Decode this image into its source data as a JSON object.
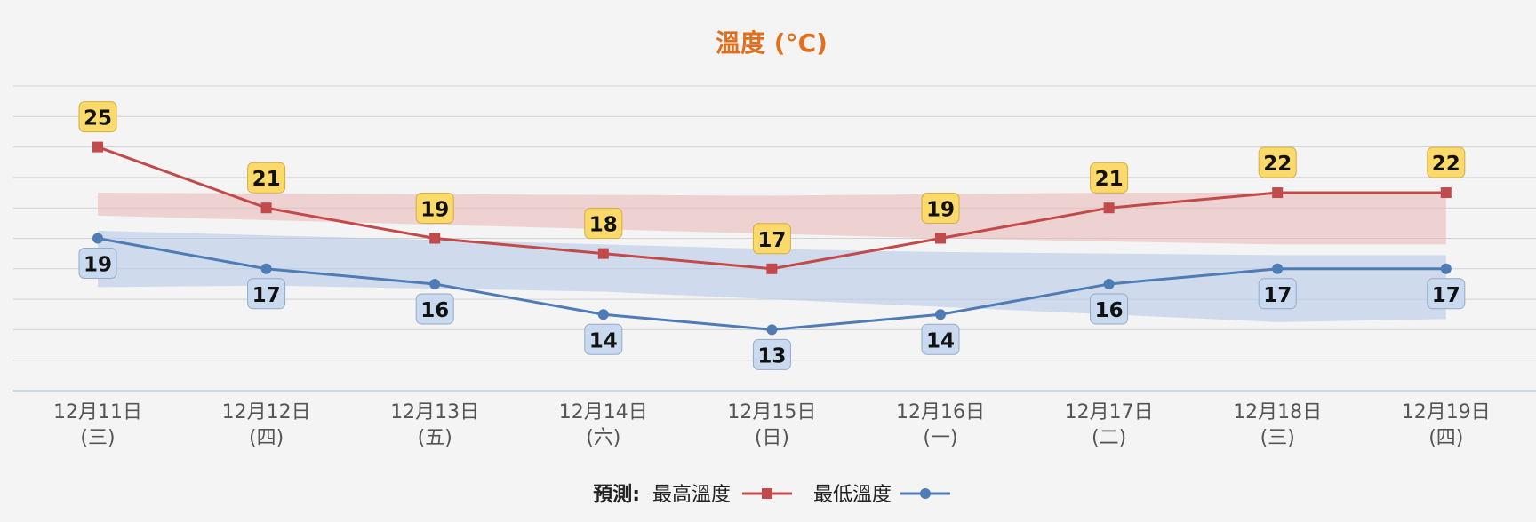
{
  "colors": {
    "title": "#e06f1f",
    "max": "#c24a4a",
    "min": "#4f7cb5",
    "max_band": "#e9b9b9",
    "min_band": "#b5c9e6",
    "max_label_bg": "#fbd96a",
    "min_label_bg": "#c9daf0",
    "grid": "#d2d2d2"
  },
  "chart_data": {
    "type": "line",
    "title": "溫度 (°C)",
    "xlabel": "",
    "ylabel": "",
    "ylim": [
      9,
      29
    ],
    "grid": true,
    "legend_position": "bottom-center",
    "legend_prefix": "預測:",
    "categories": [
      {
        "date": "12月11日",
        "weekday": "(三)"
      },
      {
        "date": "12月12日",
        "weekday": "(四)"
      },
      {
        "date": "12月13日",
        "weekday": "(五)"
      },
      {
        "date": "12月14日",
        "weekday": "(六)"
      },
      {
        "date": "12月15日",
        "weekday": "(日)"
      },
      {
        "date": "12月16日",
        "weekday": "(一)"
      },
      {
        "date": "12月17日",
        "weekday": "(二)"
      },
      {
        "date": "12月18日",
        "weekday": "(三)"
      },
      {
        "date": "12月19日",
        "weekday": "(四)"
      }
    ],
    "series": [
      {
        "name": "最高溫度",
        "marker": "square",
        "values": [
          25,
          21,
          19,
          18,
          17,
          19,
          21,
          22,
          22
        ]
      },
      {
        "name": "最低溫度",
        "marker": "circle",
        "values": [
          19,
          17,
          16,
          14,
          13,
          14,
          16,
          17,
          17
        ]
      }
    ],
    "bands": [
      {
        "series": "最高溫度",
        "upper": [
          22,
          21.95,
          21.9,
          21.85,
          21.8,
          21.9,
          22,
          22,
          22
        ],
        "lower": [
          20.5,
          20.2,
          19.9,
          19.6,
          19.3,
          19,
          18.8,
          18.6,
          18.6
        ]
      },
      {
        "series": "最低溫度",
        "upper": [
          19.5,
          19.2,
          18.9,
          18.6,
          18.3,
          18.1,
          18.0,
          17.9,
          17.9
        ],
        "lower": [
          15.8,
          15.9,
          15.7,
          15.5,
          15.0,
          14.5,
          14.0,
          13.5,
          13.7
        ]
      }
    ]
  }
}
